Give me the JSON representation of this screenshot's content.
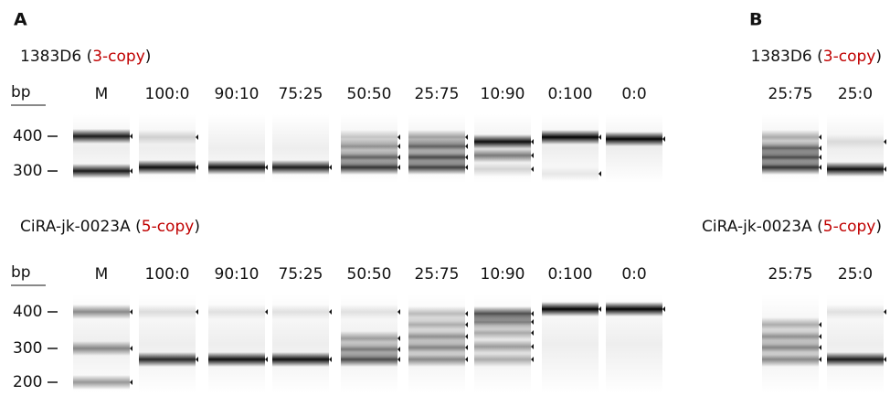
{
  "panels": [
    {
      "label": "A",
      "blots": [
        {
          "title": [
            "1383D6 (",
            "3-copy",
            ")"
          ],
          "unit": "bp",
          "lanes": [
            "M",
            "100:0",
            "90:10",
            "75:25",
            "50:50",
            "25:75",
            "10:90",
            "0:100",
            "0:0"
          ],
          "markers": [
            "400",
            "300"
          ]
        },
        {
          "title": [
            "CiRA-jk-0023A (",
            "5-copy",
            ")"
          ],
          "unit": "bp",
          "lanes": [
            "M",
            "100:0",
            "90:10",
            "75:25",
            "50:50",
            "25:75",
            "10:90",
            "0:100",
            "0:0"
          ],
          "markers": [
            "400",
            "300",
            "200"
          ]
        }
      ]
    },
    {
      "label": "B",
      "blots": [
        {
          "title": [
            "1383D6 (",
            "3-copy",
            ")"
          ],
          "lanes": [
            "25:75",
            "25:0"
          ]
        },
        {
          "title": [
            "CiRA-jk-0023A (",
            "5-copy",
            ")"
          ],
          "lanes": [
            "25:75",
            "25:0"
          ]
        }
      ]
    }
  ]
}
